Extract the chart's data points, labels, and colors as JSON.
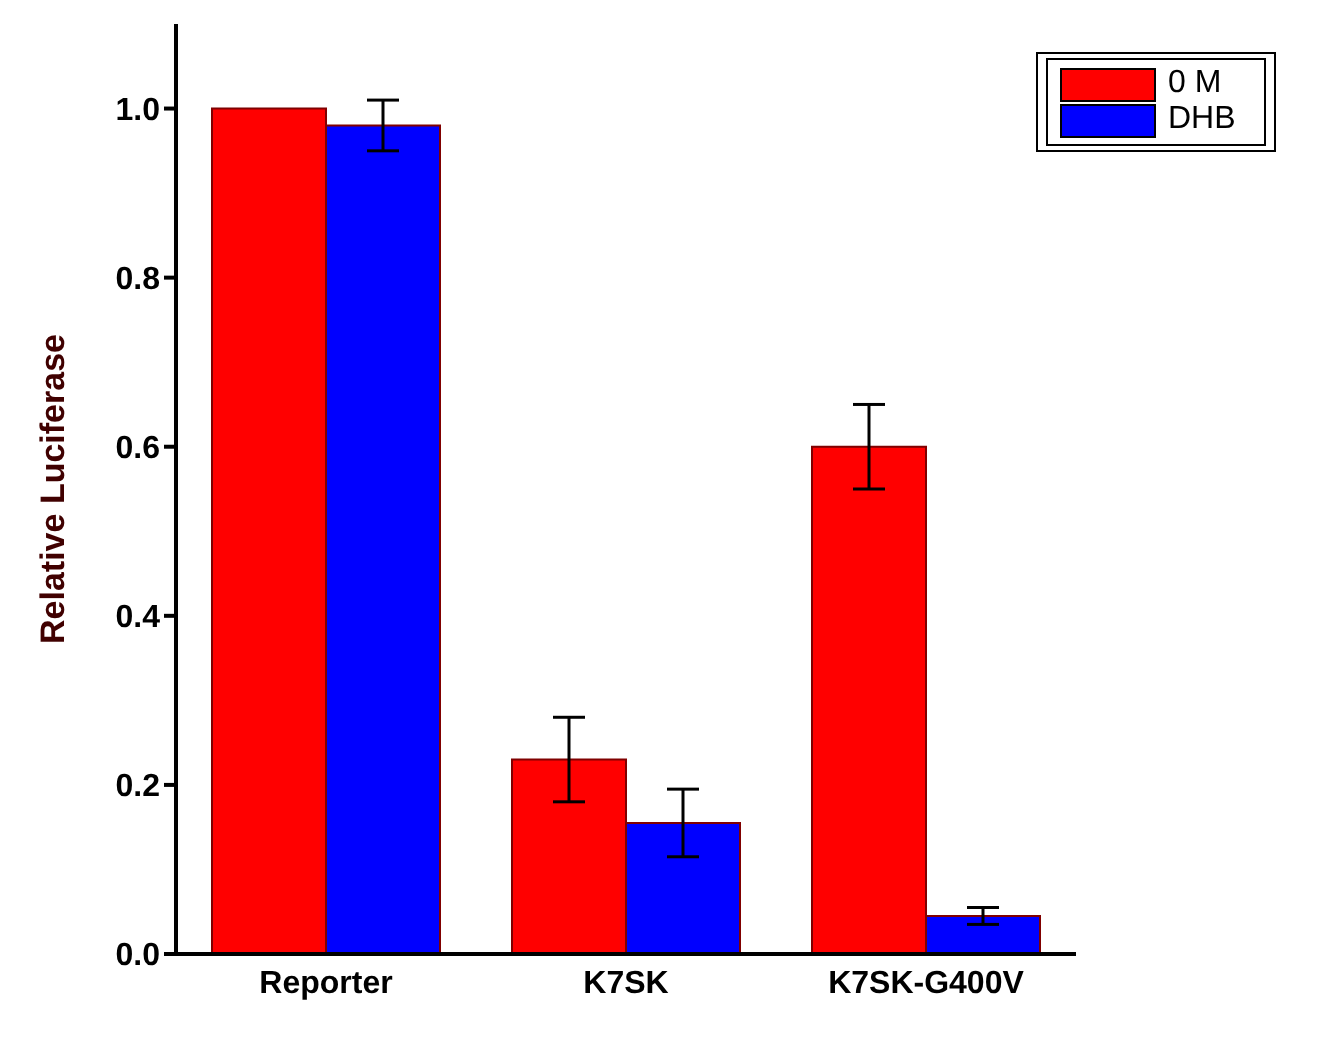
{
  "chart_data": {
    "type": "bar",
    "ylabel": "Relative Luciferase",
    "categories": [
      "Reporter",
      "K7SK",
      "K7SK-G400V"
    ],
    "series": [
      {
        "name": "0 M",
        "color": "#ff0000",
        "values": [
          1.0,
          0.23,
          0.6
        ],
        "errors": [
          null,
          0.05,
          0.05
        ]
      },
      {
        "name": "DHB",
        "color": "#0000ff",
        "values": [
          0.98,
          0.155,
          0.045
        ],
        "errors": [
          0.03,
          0.04,
          0.01
        ]
      }
    ],
    "ylim": [
      0,
      1.1
    ],
    "yticks": [
      {
        "value": 0,
        "label": "0.0"
      },
      {
        "value": 0.2,
        "label": "0.2"
      },
      {
        "value": 0.4,
        "label": "0.4"
      },
      {
        "value": 0.6,
        "label": "0.6"
      },
      {
        "value": 0.8,
        "label": "0.8"
      },
      {
        "value": 1,
        "label": "1.0"
      }
    ],
    "grid": false,
    "legend": "top right"
  }
}
